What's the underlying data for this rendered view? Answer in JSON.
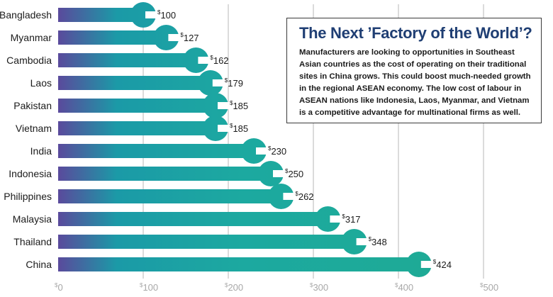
{
  "info": {
    "title": "The Next ’Factory of the World’?",
    "body": "Manufacturers are looking to opportunities in Southeast Asian countries as the cost of operating on their traditional sites in China grows. This could boost much-needed growth in the regional ASEAN economy. The low cost of labour in ASEAN nations like Indonesia, Laos, Myanmar, and Vietnam is a competitive advantage for multinational firms as well."
  },
  "chart_data": {
    "type": "bar",
    "orientation": "horizontal",
    "categories": [
      "Bangladesh",
      "Myanmar",
      "Cambodia",
      "Laos",
      "Pakistan",
      "Vietnam",
      "India",
      "Indonesia",
      "Philippines",
      "Malaysia",
      "Thailand",
      "China"
    ],
    "values": [
      100,
      127,
      162,
      179,
      185,
      185,
      230,
      250,
      262,
      317,
      348,
      424
    ],
    "value_prefix": "$",
    "xlim": [
      0,
      500
    ],
    "x_ticks": [
      {
        "value": 0,
        "label": "0"
      },
      {
        "value": 100,
        "label": "100"
      },
      {
        "value": 200,
        "label": "200"
      },
      {
        "value": 300,
        "label": "300"
      },
      {
        "value": 400,
        "label": "400"
      },
      {
        "value": 500,
        "label": "500"
      }
    ],
    "tick_prefix": "$",
    "grid": true,
    "colors": {
      "bar_start": "#5a4a9c",
      "bar_mid": "#1b9aa7",
      "bar_end": "#1eaa96",
      "grid": "#b7b7b7",
      "label": "#1b1b1b",
      "tick": "#a8a8a8"
    }
  }
}
